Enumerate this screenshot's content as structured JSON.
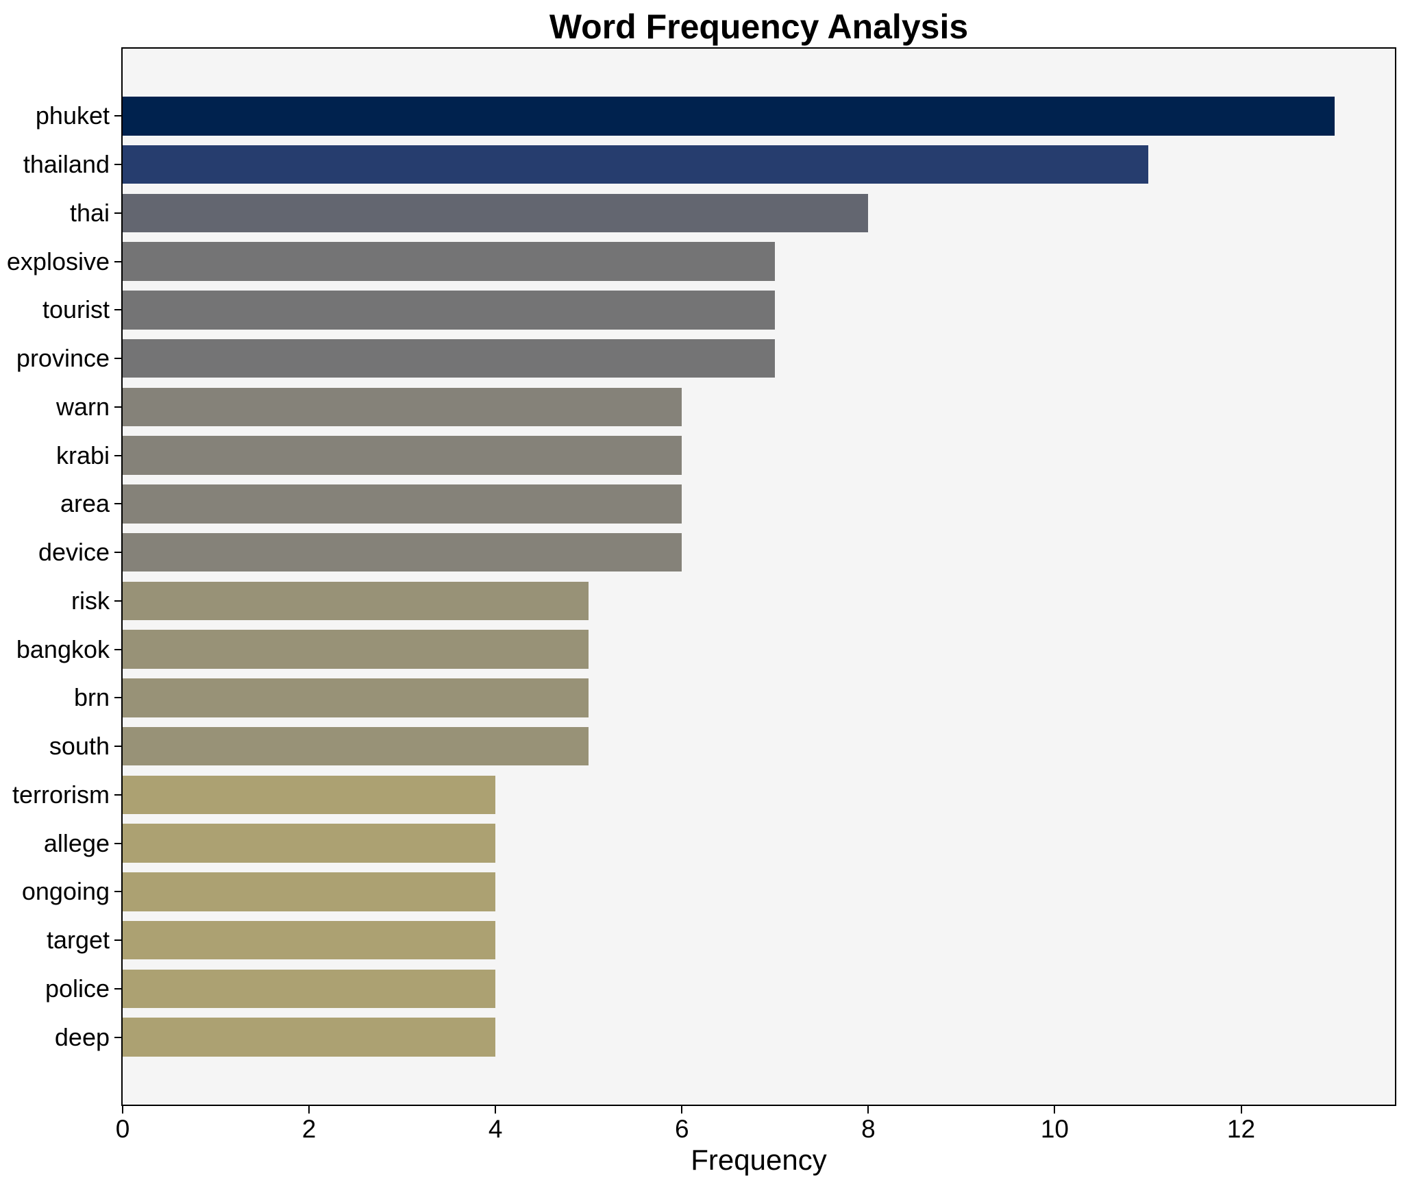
{
  "chart_data": {
    "type": "bar",
    "orientation": "horizontal",
    "title": "Word Frequency Analysis",
    "xlabel": "Frequency",
    "ylabel": "",
    "categories": [
      "phuket",
      "thailand",
      "thai",
      "explosive",
      "tourist",
      "province",
      "warn",
      "krabi",
      "area",
      "device",
      "risk",
      "bangkok",
      "brn",
      "south",
      "terrorism",
      "allege",
      "ongoing",
      "target",
      "police",
      "deep"
    ],
    "values": [
      13,
      11,
      8,
      7,
      7,
      7,
      6,
      6,
      6,
      6,
      5,
      5,
      5,
      5,
      4,
      4,
      4,
      4,
      4,
      4
    ],
    "bar_colors": [
      "#00224e",
      "#263d6e",
      "#636670",
      "#747475",
      "#747475",
      "#747475",
      "#858279",
      "#858279",
      "#858279",
      "#858279",
      "#989277",
      "#989277",
      "#989277",
      "#989277",
      "#aca172",
      "#aca172",
      "#aca172",
      "#aca172",
      "#aca172",
      "#aca172"
    ],
    "xticks": [
      0,
      2,
      4,
      6,
      8,
      10,
      12
    ],
    "xlim": [
      0,
      13.65
    ],
    "ylim": [
      -1.39,
      20.39
    ],
    "bar_height": 0.8,
    "grid": false,
    "legend": null,
    "colors": {
      "figure_background": "#ffffff",
      "plot_background": "#f5f5f5",
      "spine": "#000000",
      "text": "#000000"
    }
  }
}
